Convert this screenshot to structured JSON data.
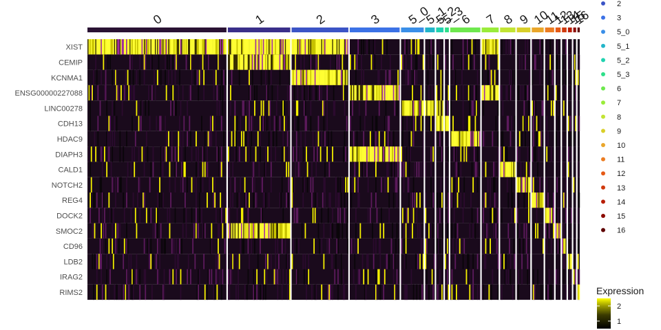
{
  "chart_data": {
    "type": "heatmap",
    "title": "",
    "genes": [
      "XIST",
      "CEMIP",
      "KCNMA1",
      "ENSG00000227088",
      "LINC00278",
      "CDH13",
      "HDAC9",
      "DIAPH3",
      "CALD1",
      "NOTCH2",
      "REG4",
      "DOCK2",
      "SMOC2",
      "CD96",
      "LDB2",
      "IRAG2",
      "RIMS2"
    ],
    "clusters": [
      {
        "name": "0",
        "proportion": 0.245,
        "color": "#2a1233",
        "high_genes": [
          "XIST"
        ]
      },
      {
        "name": "1",
        "proportion": 0.11,
        "color": "#3a2f8a",
        "high_genes": [
          "CEMIP",
          "SMOC2",
          "XIST"
        ]
      },
      {
        "name": "2",
        "proportion": 0.1,
        "color": "#3b54c6",
        "high_genes": [
          "KCNMA1",
          "XIST"
        ]
      },
      {
        "name": "3",
        "proportion": 0.088,
        "color": "#3c72e6",
        "high_genes": [
          "ENSG00000227088",
          "DIAPH3"
        ]
      },
      {
        "name": "5_0",
        "proportion": 0.04,
        "color": "#3a8fe8",
        "high_genes": [
          "LINC00278"
        ]
      },
      {
        "name": "5_1",
        "proportion": 0.017,
        "color": "#22b5c9",
        "high_genes": [
          "LINC00278"
        ]
      },
      {
        "name": "5_2",
        "proportion": 0.013,
        "color": "#21d2b0",
        "high_genes": [
          "LINC00278",
          "CDH13"
        ]
      },
      {
        "name": "5_3",
        "proportion": 0.007,
        "color": "#2ee08a",
        "high_genes": [
          "CDH13"
        ]
      },
      {
        "name": "6",
        "proportion": 0.053,
        "color": "#6ee84e",
        "high_genes": [
          "HDAC9"
        ]
      },
      {
        "name": "7",
        "proportion": 0.03,
        "color": "#9aec3a",
        "high_genes": [
          "ENSG00000227088",
          "XIST"
        ]
      },
      {
        "name": "8",
        "proportion": 0.027,
        "color": "#c2e433",
        "high_genes": [
          "CALD1"
        ]
      },
      {
        "name": "9",
        "proportion": 0.024,
        "color": "#d9cf2a",
        "high_genes": [
          "NOTCH2"
        ]
      },
      {
        "name": "10",
        "proportion": 0.021,
        "color": "#eaa62b",
        "high_genes": [
          "REG4"
        ]
      },
      {
        "name": "11",
        "proportion": 0.016,
        "color": "#ec7d23",
        "high_genes": [
          "DOCK2"
        ]
      },
      {
        "name": "12",
        "proportion": 0.009,
        "color": "#e55a16",
        "high_genes": [
          "SMOC2"
        ]
      },
      {
        "name": "13",
        "proportion": 0.008,
        "color": "#d03a0e",
        "high_genes": [
          "CD96"
        ]
      },
      {
        "name": "14",
        "proportion": 0.007,
        "color": "#b81e06",
        "high_genes": [
          "LDB2"
        ]
      },
      {
        "name": "15",
        "proportion": 0.005,
        "color": "#8c0a00",
        "high_genes": [
          "IRAG2"
        ]
      },
      {
        "name": "16",
        "proportion": 0.004,
        "color": "#5e0000",
        "high_genes": [
          "RIMS2"
        ]
      }
    ],
    "legend_clusters": [
      {
        "name": "2",
        "color": "#3b54c6"
      },
      {
        "name": "3",
        "color": "#3c72e6"
      },
      {
        "name": "5_0",
        "color": "#3a8fe8"
      },
      {
        "name": "5_1",
        "color": "#22b5c9"
      },
      {
        "name": "5_2",
        "color": "#21d2b0"
      },
      {
        "name": "5_3",
        "color": "#2ee08a"
      },
      {
        "name": "6",
        "color": "#6ee84e"
      },
      {
        "name": "7",
        "color": "#9aec3a"
      },
      {
        "name": "8",
        "color": "#c2e433"
      },
      {
        "name": "9",
        "color": "#d9cf2a"
      },
      {
        "name": "10",
        "color": "#eaa62b"
      },
      {
        "name": "11",
        "color": "#ec7d23"
      },
      {
        "name": "12",
        "color": "#e55a16"
      },
      {
        "name": "13",
        "color": "#d03a0e"
      },
      {
        "name": "14",
        "color": "#b81e06"
      },
      {
        "name": "15",
        "color": "#8c0a00"
      },
      {
        "name": "16",
        "color": "#5e0000"
      }
    ],
    "colorbar": {
      "title": "Expression",
      "ticks": [
        1,
        2
      ],
      "range": [
        0.5,
        2.5
      ],
      "low_color": "#000000",
      "mid_color": "#9b1f9b",
      "high_color": "#ffff00"
    },
    "legend_placement": "right",
    "grid": false
  }
}
